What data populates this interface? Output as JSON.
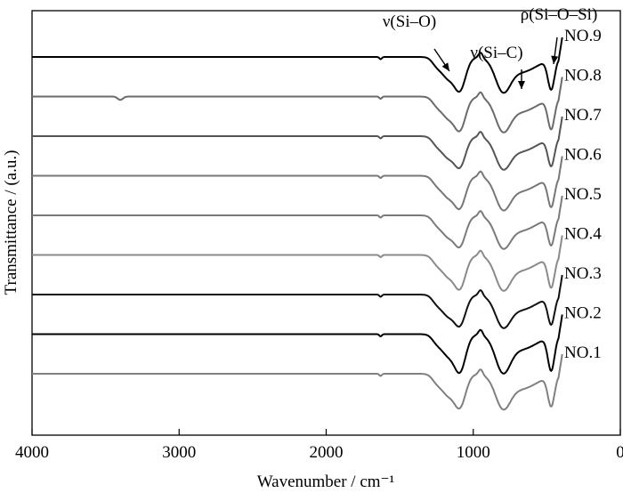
{
  "chart_data": {
    "type": "line",
    "title": "",
    "xlabel": "Wavenumber / cm⁻¹",
    "ylabel": "Transmittance / (a.u.)",
    "x_reversed": true,
    "xlim": [
      4000,
      0
    ],
    "x_ticks": [
      4000,
      3000,
      2000,
      1000,
      0
    ],
    "x_tick_labels": [
      "4000",
      "3000",
      "2000",
      "1000",
      "0"
    ],
    "y_ticks_shown": false,
    "grid": false,
    "legend": "labels at right end of each trace",
    "series": [
      {
        "name": "NO.9",
        "color": "#000000",
        "offset": 9.0,
        "depth": 1.15
      },
      {
        "name": "NO.8",
        "color": "#6b6b6b",
        "offset": 8.0,
        "depth": 1.15,
        "extra_dip_3400": true
      },
      {
        "name": "NO.7",
        "color": "#555555",
        "offset": 7.0,
        "depth": 1.05
      },
      {
        "name": "NO.6",
        "color": "#777777",
        "offset": 6.0,
        "depth": 1.1
      },
      {
        "name": "NO.5",
        "color": "#7a7a7a",
        "offset": 5.0,
        "depth": 1.05
      },
      {
        "name": "NO.4",
        "color": "#8a8a8a",
        "offset": 4.0,
        "depth": 1.15
      },
      {
        "name": "NO.3",
        "color": "#111111",
        "offset": 3.0,
        "depth": 1.05
      },
      {
        "name": "NO.2",
        "color": "#000000",
        "offset": 2.0,
        "depth": 1.3
      },
      {
        "name": "NO.1",
        "color": "#808080",
        "offset": 1.0,
        "depth": 1.15
      }
    ],
    "annotations": [
      {
        "text": "ν(Si–O)",
        "x": 1150
      },
      {
        "text": "ν(Si–C)",
        "x": 800
      },
      {
        "text": "ρ(Si–O–Si)",
        "x": 450
      }
    ]
  }
}
